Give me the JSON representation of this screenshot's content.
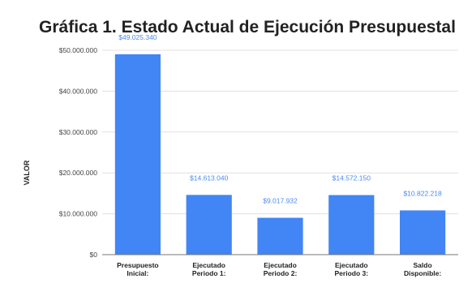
{
  "chart_data": {
    "type": "bar",
    "title": "Gráfica 1. Estado Actual de Ejecución Presupuestal",
    "ylabel": "VALOR",
    "xlabel": "",
    "ylim": [
      0,
      50000000
    ],
    "yticks": [
      0,
      10000000,
      20000000,
      30000000,
      40000000,
      50000000
    ],
    "ytick_labels": [
      "$0",
      "$10.000.000",
      "$20.000.000",
      "$30.000.000",
      "$40.000.000",
      "$50.000.000"
    ],
    "grid": true,
    "legend": "none",
    "bar_color": "#4285f4",
    "label_color": "#4a8af4",
    "categories": [
      [
        "Presupuesto",
        "Inicial:"
      ],
      [
        "Ejecutado",
        "Periodo 1:"
      ],
      [
        "Ejecutado",
        "Periodo 2:"
      ],
      [
        "Ejecutado",
        "Periodo 3:"
      ],
      [
        "Saldo",
        "Disponible:"
      ]
    ],
    "values": [
      49025340,
      14613040,
      9017932,
      14572150,
      10822218
    ],
    "value_labels": [
      "$49.025.340",
      "$14.613.040",
      "$9.017.932",
      "$14.572.150",
      "$10.822.218"
    ]
  }
}
